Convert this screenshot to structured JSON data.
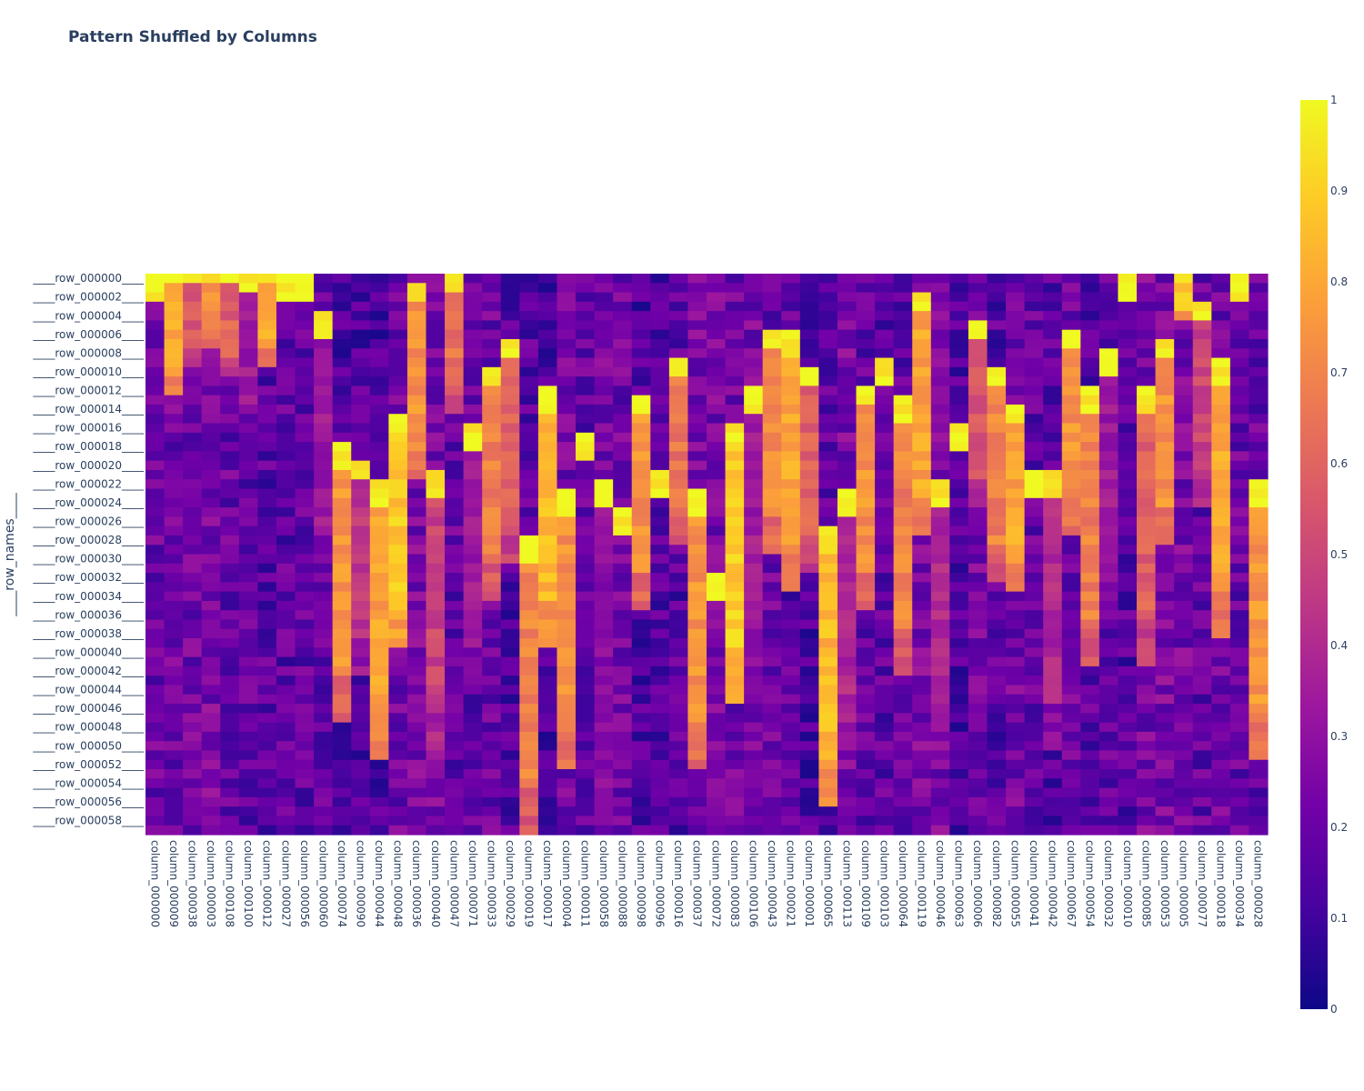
{
  "chart_data": {
    "type": "heatmap",
    "title": "Pattern Shuffled by Columns",
    "ylabel": "____row_names____",
    "xlabel": "",
    "n_rows": 60,
    "n_cols": 60,
    "row_tick_labels": [
      "____row_000000____",
      "____row_000002____",
      "____row_000004____",
      "____row_000006____",
      "____row_000008____",
      "____row_000010____",
      "____row_000012____",
      "____row_000014____",
      "____row_000016____",
      "____row_000018____",
      "____row_000020____",
      "____row_000022____",
      "____row_000024____",
      "____row_000026____",
      "____row_000028____",
      "____row_000030____",
      "____row_000032____",
      "____row_000034____",
      "____row_000036____",
      "____row_000038____",
      "____row_000040____",
      "____row_000042____",
      "____row_000044____",
      "____row_000046____",
      "____row_000048____",
      "____row_000050____",
      "____row_000052____",
      "____row_000054____",
      "____row_000056____",
      "____row_000058____"
    ],
    "column_tick_labels": [
      "column_000000",
      "column_000009",
      "column_000038",
      "column_000003",
      "column_000108",
      "column_000100",
      "column_000012",
      "column_000027",
      "column_000056",
      "column_000060",
      "column_000074",
      "column_000090",
      "column_000044",
      "column_000048",
      "column_000036",
      "column_000040",
      "column_000047",
      "column_000071",
      "column_000033",
      "column_000029",
      "column_000019",
      "column_000017",
      "column_000004",
      "column_000011",
      "column_000058",
      "column_000088",
      "column_000098",
      "column_000096",
      "column_000016",
      "column_000037",
      "column_000072",
      "column_000083",
      "column_000106",
      "column_000043",
      "column_000021",
      "column_000001",
      "column_000065",
      "column_000113",
      "column_000109",
      "column_000103",
      "column_000064",
      "column_000119",
      "column_000046",
      "column_000063",
      "column_000006",
      "column_000082",
      "column_000055",
      "column_000041",
      "column_000042",
      "column_000067",
      "column_000054",
      "column_000032",
      "column_000010",
      "column_000085",
      "column_000053",
      "column_000005",
      "column_000077",
      "column_000018",
      "column_000034",
      "column_000028"
    ],
    "bands": [
      [
        0,
        30,
        0.15
      ],
      [
        0,
        13,
        0.8
      ],
      [
        0,
        10,
        0.55
      ],
      [
        0,
        8,
        0.75
      ],
      [
        0,
        11,
        0.6
      ],
      [
        0,
        17,
        0.35
      ],
      [
        0,
        10,
        0.8
      ],
      [
        0,
        27,
        0.05
      ],
      [
        0,
        29,
        0.05
      ],
      [
        4,
        29,
        0.35
      ],
      [
        18,
        30,
        0.75
      ],
      [
        20,
        23,
        0.45
      ],
      [
        22,
        30,
        0.8
      ],
      [
        15,
        25,
        0.9
      ],
      [
        1,
        21,
        0.75
      ],
      [
        21,
        30,
        0.5
      ],
      [
        0,
        15,
        0.65
      ],
      [
        16,
        29,
        0.35
      ],
      [
        10,
        25,
        0.7
      ],
      [
        7,
        24,
        0.6
      ],
      [
        28,
        32,
        0.7
      ],
      [
        12,
        28,
        0.85
      ],
      [
        23,
        30,
        0.75
      ],
      [
        17,
        30,
        0.1
      ],
      [
        22,
        30,
        0.3
      ],
      [
        25,
        30,
        0.15
      ],
      [
        13,
        23,
        0.75
      ],
      [
        21,
        29,
        0.05
      ],
      [
        9,
        20,
        0.65
      ],
      [
        23,
        30,
        0.75
      ],
      [
        32,
        31,
        0.15
      ],
      [
        16,
        30,
        0.9
      ],
      [
        12,
        30,
        0.35
      ],
      [
        6,
        24,
        0.75
      ],
      [
        6,
        28,
        0.8
      ],
      [
        10,
        22,
        0.6
      ],
      [
        27,
        30,
        0.85
      ],
      [
        23,
        30,
        0.4
      ],
      [
        12,
        24,
        0.75
      ],
      [
        9,
        28,
        0.2
      ],
      [
        13,
        30,
        0.7
      ],
      [
        2,
        26,
        0.8
      ],
      [
        22,
        30,
        0.4
      ],
      [
        16,
        30,
        0.1
      ],
      [
        5,
        20,
        0.55
      ],
      [
        10,
        23,
        0.7
      ],
      [
        14,
        20,
        0.8
      ],
      [
        21,
        30,
        0.15
      ],
      [
        21,
        30,
        0.4
      ],
      [
        6,
        22,
        0.75
      ],
      [
        12,
        30,
        0.7
      ],
      [
        8,
        30,
        0.35
      ],
      [
        0,
        28,
        0.15
      ],
      [
        12,
        30,
        0.6
      ],
      [
        7,
        22,
        0.75
      ],
      [
        0,
        5,
        0.9
      ],
      [
        3,
        22,
        0.5
      ],
      [
        9,
        30,
        0.8
      ],
      [
        0,
        28,
        0.1
      ],
      [
        22,
        30,
        0.75
      ]
    ],
    "colorscale": [
      "#0d0887",
      "#46039f",
      "#7201a8",
      "#9c179e",
      "#bd3786",
      "#d8576b",
      "#ed7953",
      "#fb9f3a",
      "#fdca26",
      "#f0f921"
    ],
    "zmin": 0,
    "zmax": 1,
    "colorbar_ticks": [
      "0",
      "0.1",
      "0.2",
      "0.3",
      "0.4",
      "0.5",
      "0.6",
      "0.7",
      "0.8",
      "0.9",
      "1"
    ],
    "grid": false
  }
}
